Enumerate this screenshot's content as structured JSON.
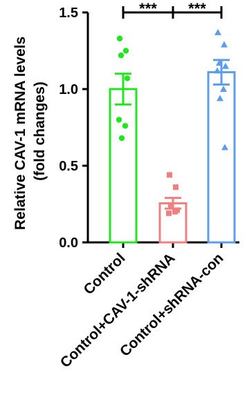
{
  "chart_data": {
    "type": "bar",
    "ylabel_line1": "Relative CAV-1 mRNA levels",
    "ylabel_line2": "(fold changes)",
    "categories": [
      "Control",
      "Control+CAV-1-shRNA",
      "Control+shRNA-con"
    ],
    "values": [
      1.0,
      0.255,
      1.11
    ],
    "errors": [
      0.1,
      0.035,
      0.08
    ],
    "colors": [
      "#22e51e",
      "#f08080",
      "#5b9de8"
    ],
    "markers": [
      "circle",
      "square",
      "triangle"
    ],
    "points": [
      [
        1.33,
        1.25,
        1.22,
        1.07,
        0.8,
        0.76,
        0.68
      ],
      [
        0.44,
        0.36,
        0.24,
        0.21,
        0.19,
        0.2
      ],
      [
        1.37,
        1.29,
        1.17,
        1.15,
        1.12,
        1.0,
        0.94,
        0.62
      ]
    ],
    "ylim": [
      0,
      1.5
    ],
    "yticks": [
      {
        "value": 0.0,
        "label": "0.0"
      },
      {
        "value": 0.5,
        "label": "0.5"
      },
      {
        "value": 1.0,
        "label": "1.0"
      },
      {
        "value": 1.5,
        "label": "1.5"
      }
    ],
    "significance": [
      {
        "from": 0,
        "to": 1,
        "label": "***"
      },
      {
        "from": 1,
        "to": 2,
        "label": "***"
      }
    ]
  }
}
